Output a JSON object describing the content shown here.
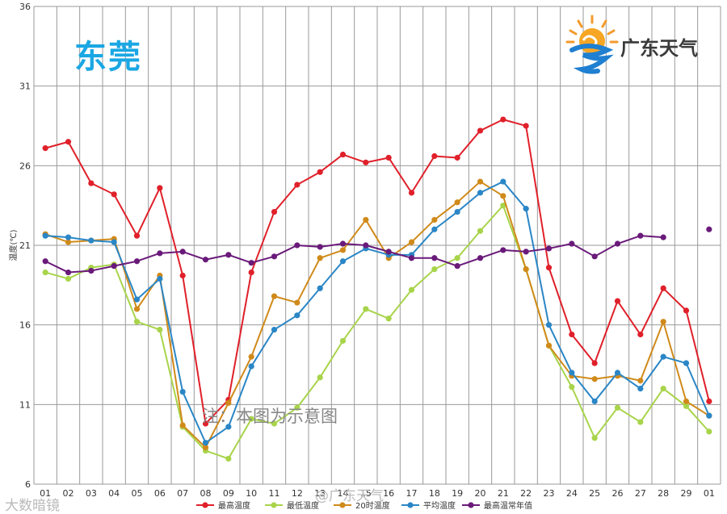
{
  "header": {
    "city": "东莞",
    "brand": "广东天气"
  },
  "note": "注：本图为示意图",
  "watermark": {
    "left": "大数暗镜",
    "center": "@广东天气"
  },
  "colors": {
    "max": "#e0202a",
    "min": "#a8d44a",
    "t20": "#d08a1a",
    "avg": "#2a86c6",
    "normal": "#6a1a7a",
    "city_title": "#1aa7e3"
  },
  "chart_data": {
    "type": "line",
    "categories": [
      "01",
      "02",
      "03",
      "04",
      "05",
      "06",
      "07",
      "08",
      "09",
      "10",
      "11",
      "12",
      "13",
      "14",
      "15",
      "16",
      "17",
      "18",
      "19",
      "20",
      "21",
      "22",
      "23",
      "24",
      "25",
      "26",
      "27",
      "28",
      "29",
      "01"
    ],
    "ylabel": "温度(℃)",
    "ylim": [
      6,
      36
    ],
    "yticks": [
      6,
      11,
      16,
      21,
      26,
      31,
      36
    ],
    "grid": true,
    "legend_position": "bottom",
    "series": [
      {
        "name": "最高温度",
        "color": "#e0202a",
        "values": [
          27.1,
          27.5,
          24.9,
          24.2,
          21.6,
          24.6,
          19.1,
          9.8,
          11.3,
          19.3,
          23.1,
          24.8,
          25.6,
          26.7,
          26.2,
          26.5,
          24.3,
          26.6,
          26.5,
          28.2,
          28.9,
          28.5,
          19.6,
          15.4,
          13.6,
          17.5,
          15.4,
          18.3,
          16.9,
          11.2
        ]
      },
      {
        "name": "最低温度",
        "color": "#a8d44a",
        "values": [
          19.3,
          18.9,
          19.6,
          19.8,
          16.2,
          15.7,
          9.6,
          8.1,
          7.6,
          10.1,
          9.8,
          10.8,
          12.7,
          15.0,
          17.0,
          16.4,
          18.2,
          19.5,
          20.2,
          21.9,
          23.5,
          19.5,
          14.7,
          12.1,
          8.9,
          10.8,
          9.9,
          12.0,
          10.9,
          9.3
        ]
      },
      {
        "name": "20时温度",
        "color": "#d08a1a",
        "values": [
          21.7,
          21.2,
          21.3,
          21.4,
          17.0,
          19.1,
          9.7,
          8.3,
          11.1,
          14.0,
          17.8,
          17.4,
          20.2,
          20.7,
          22.6,
          20.2,
          21.2,
          22.6,
          23.7,
          25.0,
          24.1,
          19.5,
          14.7,
          12.8,
          12.6,
          12.8,
          12.5,
          16.2,
          11.2,
          10.3
        ]
      },
      {
        "name": "平均温度",
        "color": "#2a86c6",
        "values": [
          21.6,
          21.5,
          21.3,
          21.2,
          17.6,
          18.9,
          11.8,
          8.6,
          9.6,
          13.4,
          15.7,
          16.6,
          18.3,
          20.0,
          20.8,
          20.4,
          20.4,
          22.0,
          23.1,
          24.3,
          25.0,
          23.3,
          16.0,
          13.0,
          11.2,
          13.0,
          12.0,
          14.0,
          13.6,
          10.3
        ]
      },
      {
        "name": "最高温常年值",
        "color": "#6a1a7a",
        "values": [
          20.0,
          19.3,
          19.4,
          19.7,
          20.0,
          20.5,
          20.6,
          20.1,
          20.4,
          19.9,
          20.3,
          21.0,
          20.9,
          21.1,
          21.0,
          20.6,
          20.2,
          20.2,
          19.7,
          20.2,
          20.7,
          20.6,
          20.8,
          21.1,
          20.3,
          21.1,
          21.6,
          21.5,
          null,
          22.0
        ]
      }
    ]
  }
}
